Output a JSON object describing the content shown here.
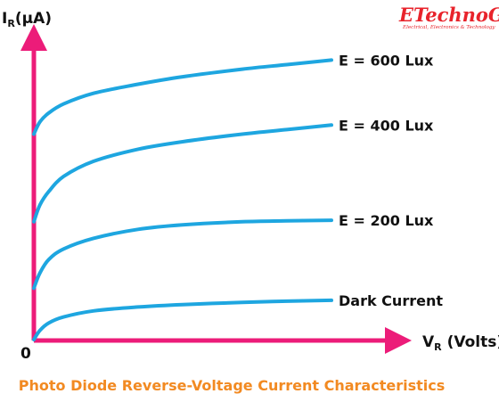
{
  "logo": {
    "name": "ETechnoG",
    "tagline": "Electrical, Electronics & Technology"
  },
  "caption": "Photo Diode Reverse-Voltage Current Characteristics",
  "chart_data": {
    "type": "line",
    "title": "Photo Diode Reverse-Voltage Current Characteristics",
    "ylabel": {
      "main": "I",
      "sub": "R",
      "unit": "(µA)"
    },
    "xlabel": {
      "main": "V",
      "sub": "R",
      "unit": " (Volts)"
    },
    "origin_label": "0",
    "xlim": [
      0,
      100
    ],
    "ylim": [
      0,
      100
    ],
    "grid": false,
    "colors": {
      "axis": "#ec1c79",
      "series": "#1ea6e0",
      "caption": "#f28a22",
      "logo": "#e8232b"
    },
    "series": [
      {
        "name": "E = 600 Lux",
        "x": [
          0,
          2,
          5,
          10,
          20,
          35,
          50,
          70,
          85,
          100
        ],
        "y": [
          68,
          72,
          75,
          78,
          81.5,
          84.5,
          87,
          89.5,
          91,
          92.5
        ]
      },
      {
        "name": "E = 400 Lux",
        "x": [
          0,
          2,
          5,
          10,
          20,
          35,
          50,
          70,
          85,
          100
        ],
        "y": [
          39,
          44.5,
          49,
          54,
          59,
          63,
          65.5,
          68,
          69.5,
          71
        ]
      },
      {
        "name": "E = 200 Lux",
        "x": [
          0,
          2,
          5,
          10,
          20,
          35,
          50,
          70,
          85,
          100
        ],
        "y": [
          17,
          22,
          26.5,
          30,
          33.5,
          36.5,
          38,
          39,
          39.3,
          39.5
        ]
      },
      {
        "name": "Dark Current",
        "x": [
          0,
          2,
          5,
          10,
          20,
          35,
          50,
          70,
          85,
          100
        ],
        "y": [
          0,
          3,
          5.5,
          7.5,
          9.5,
          10.8,
          11.6,
          12.3,
          12.7,
          13
        ]
      }
    ]
  }
}
